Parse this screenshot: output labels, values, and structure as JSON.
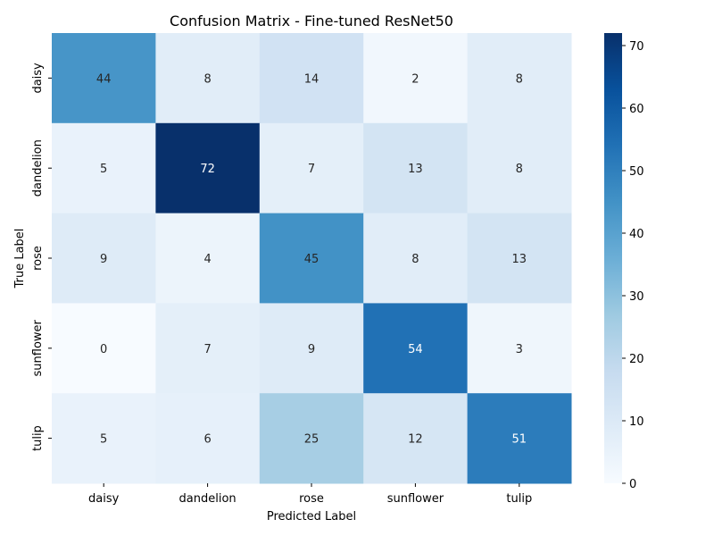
{
  "chart_data": {
    "type": "heatmap",
    "title": "Confusion Matrix - Fine-tuned ResNet50",
    "xlabel": "Predicted Label",
    "ylabel": "True Label",
    "x_categories": [
      "daisy",
      "dandelion",
      "rose",
      "sunflower",
      "tulip"
    ],
    "y_categories": [
      "daisy",
      "dandelion",
      "rose",
      "sunflower",
      "tulip"
    ],
    "values": [
      [
        44,
        8,
        14,
        2,
        8
      ],
      [
        5,
        72,
        7,
        13,
        8
      ],
      [
        9,
        4,
        45,
        8,
        13
      ],
      [
        0,
        7,
        9,
        54,
        3
      ],
      [
        5,
        6,
        25,
        12,
        51
      ]
    ],
    "colorbar": {
      "min": 0,
      "max": 72,
      "ticks": [
        0,
        10,
        20,
        30,
        40,
        50,
        60,
        70
      ],
      "colormap": "Blues",
      "colormap_stops": [
        "#f7fbff",
        "#deebf7",
        "#c6dbef",
        "#9ecae1",
        "#6baed6",
        "#4292c6",
        "#2171b5",
        "#08519c",
        "#08306b"
      ]
    }
  }
}
